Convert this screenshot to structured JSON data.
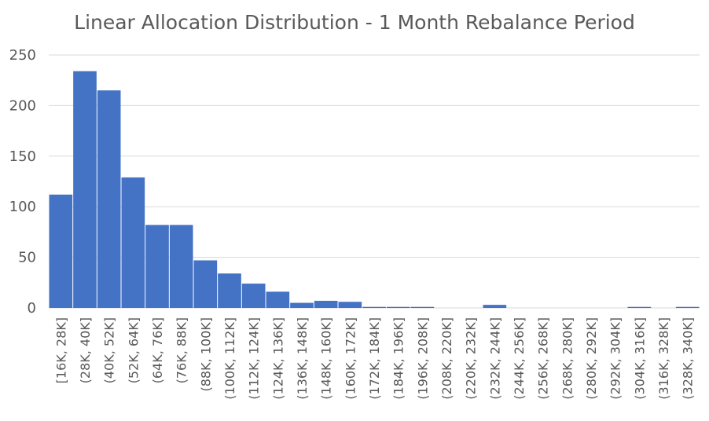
{
  "chart_data": {
    "type": "bar",
    "title": "Linear Allocation Distribution - 1 Month Rebalance Period",
    "xlabel": "",
    "ylabel": "",
    "ylim": [
      0,
      250
    ],
    "yticks": [
      0,
      50,
      100,
      150,
      200,
      250
    ],
    "grid": true,
    "bar_color": "#4472C4",
    "categories": [
      "[16K, 28K]",
      "(28K, 40K]",
      "(40K, 52K]",
      "(52K, 64K]",
      "(64K, 76K]",
      "(76K, 88K]",
      "(88K, 100K]",
      "(100K, 112K]",
      "(112K, 124K]",
      "(124K, 136K]",
      "(136K, 148K]",
      "(148K, 160K]",
      "(160K, 172K]",
      "(172K, 184K]",
      "(184K, 196K]",
      "(196K, 208K]",
      "(208K, 220K]",
      "(220K, 232K]",
      "(232K, 244K]",
      "(244K, 256K]",
      "(256K, 268K]",
      "(268K, 280K]",
      "(280K, 292K]",
      "(292K, 304K]",
      "(304K, 316K]",
      "(316K, 328K]",
      "(328K, 340K]"
    ],
    "values": [
      112,
      234,
      215,
      129,
      82,
      82,
      47,
      34,
      24,
      16,
      5,
      7,
      6,
      1,
      1,
      1,
      0,
      0,
      3,
      0,
      0,
      0,
      0,
      0,
      1,
      0,
      1
    ]
  }
}
